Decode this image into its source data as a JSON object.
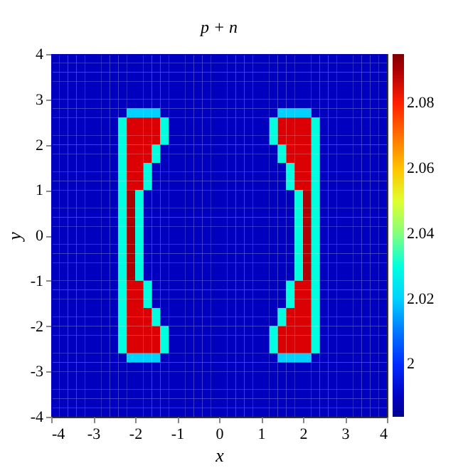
{
  "chart_data": {
    "type": "heatmap",
    "title": "p + n",
    "xlabel": "x",
    "ylabel": "y",
    "xlim": [
      -4,
      4
    ],
    "ylim": [
      -4,
      4
    ],
    "xticks": [
      -4,
      -3,
      -2,
      -1,
      0,
      1,
      2,
      3,
      4
    ],
    "yticks": [
      -4,
      -3,
      -2,
      -1,
      0,
      1,
      2,
      3,
      4
    ],
    "clim": [
      1.984,
      2.095
    ],
    "cticks": [
      2,
      2.02,
      2.04,
      2.06,
      2.08
    ],
    "cells": [
      [
        1.99,
        1.99,
        1.99,
        1.99,
        1.99,
        1.99,
        1.99,
        1.99,
        1.99,
        1.99,
        1.99,
        1.99,
        1.99,
        1.99,
        1.99,
        1.99,
        1.99,
        1.99,
        1.99,
        1.99,
        1.99,
        1.99,
        1.99,
        1.99,
        1.99,
        1.99,
        1.99,
        1.99,
        1.99,
        1.99,
        1.99,
        1.99,
        1.99,
        1.99,
        1.99,
        1.99,
        1.99,
        1.99,
        1.99,
        1.99
      ],
      [
        1.99,
        1.99,
        1.99,
        1.99,
        1.99,
        1.99,
        1.99,
        1.99,
        1.99,
        1.99,
        1.99,
        1.99,
        1.99,
        1.99,
        1.99,
        1.99,
        1.99,
        1.99,
        1.99,
        1.99,
        1.99,
        1.99,
        1.99,
        1.99,
        1.99,
        1.99,
        1.99,
        1.99,
        1.99,
        1.99,
        1.99,
        1.99,
        1.99,
        1.99,
        1.99,
        1.99,
        1.99,
        1.99,
        1.99,
        1.99
      ],
      [
        1.99,
        1.99,
        1.99,
        1.99,
        1.99,
        1.99,
        1.99,
        1.99,
        1.99,
        1.99,
        1.99,
        1.99,
        1.99,
        1.99,
        1.99,
        1.99,
        1.99,
        1.99,
        1.99,
        1.99,
        1.99,
        1.99,
        1.99,
        1.99,
        1.99,
        1.99,
        1.99,
        1.99,
        1.99,
        1.99,
        1.99,
        1.99,
        1.99,
        1.99,
        1.99,
        1.99,
        1.99,
        1.99,
        1.99,
        1.99
      ],
      [
        1.99,
        1.99,
        1.99,
        1.99,
        1.99,
        1.99,
        1.99,
        1.99,
        1.99,
        1.99,
        1.99,
        1.99,
        1.99,
        1.99,
        1.99,
        1.99,
        1.99,
        1.99,
        1.99,
        1.99,
        1.99,
        1.99,
        1.99,
        1.99,
        1.99,
        1.99,
        1.99,
        1.99,
        1.99,
        1.99,
        1.99,
        1.99,
        1.99,
        1.99,
        1.99,
        1.99,
        1.99,
        1.99,
        1.99,
        1.99
      ],
      [
        1.99,
        1.99,
        1.99,
        1.99,
        1.99,
        1.99,
        1.99,
        1.99,
        1.99,
        1.99,
        1.99,
        1.99,
        1.99,
        1.99,
        1.99,
        1.99,
        1.99,
        1.99,
        1.99,
        1.99,
        1.99,
        1.99,
        1.99,
        1.99,
        1.99,
        1.99,
        1.99,
        1.99,
        1.99,
        1.99,
        1.99,
        1.99,
        1.99,
        1.99,
        1.99,
        1.99,
        1.99,
        1.99,
        1.99,
        1.99
      ],
      [
        1.99,
        1.99,
        1.99,
        1.99,
        1.99,
        1.99,
        1.99,
        1.99,
        1.99,
        1.99,
        1.99,
        1.99,
        1.99,
        1.99,
        1.99,
        1.99,
        1.99,
        1.99,
        1.99,
        1.99,
        1.99,
        1.99,
        1.99,
        1.99,
        1.99,
        1.99,
        1.99,
        1.99,
        1.99,
        1.99,
        1.99,
        1.99,
        1.99,
        1.99,
        1.99,
        1.99,
        1.99,
        1.99,
        1.99,
        1.99
      ],
      [
        1.99,
        1.99,
        1.99,
        1.99,
        1.99,
        1.99,
        1.99,
        1.99,
        1.99,
        2.02,
        2.02,
        2.02,
        2.02,
        1.99,
        1.99,
        1.99,
        1.99,
        1.99,
        1.99,
        1.99,
        1.99,
        1.99,
        1.99,
        1.99,
        1.99,
        1.99,
        1.99,
        2.02,
        2.02,
        2.02,
        2.02,
        1.99,
        1.99,
        1.99,
        1.99,
        1.99,
        1.99,
        1.99,
        1.99,
        1.99
      ],
      [
        1.99,
        1.99,
        1.99,
        1.99,
        1.99,
        1.99,
        1.99,
        1.99,
        2.03,
        2.085,
        2.085,
        2.085,
        2.085,
        2.03,
        1.99,
        1.99,
        1.99,
        1.99,
        1.99,
        1.99,
        1.99,
        1.99,
        1.99,
        1.99,
        1.99,
        1.99,
        2.03,
        2.085,
        2.085,
        2.085,
        2.085,
        2.03,
        1.99,
        1.99,
        1.99,
        1.99,
        1.99,
        1.99,
        1.99,
        1.99
      ],
      [
        1.99,
        1.99,
        1.99,
        1.99,
        1.99,
        1.99,
        1.99,
        1.99,
        2.03,
        2.085,
        2.085,
        2.085,
        2.085,
        2.03,
        1.99,
        1.99,
        1.99,
        1.99,
        1.99,
        1.99,
        1.99,
        1.99,
        1.99,
        1.99,
        1.99,
        1.99,
        2.03,
        2.085,
        2.085,
        2.085,
        2.085,
        2.03,
        1.99,
        1.99,
        1.99,
        1.99,
        1.99,
        1.99,
        1.99,
        1.99
      ],
      [
        1.99,
        1.99,
        1.99,
        1.99,
        1.99,
        1.99,
        1.99,
        1.99,
        2.03,
        2.085,
        2.085,
        2.085,
        2.085,
        2.03,
        1.99,
        1.99,
        1.99,
        1.99,
        1.99,
        1.99,
        1.99,
        1.99,
        1.99,
        1.99,
        1.99,
        1.99,
        2.03,
        2.085,
        2.085,
        2.085,
        2.085,
        2.03,
        1.99,
        1.99,
        1.99,
        1.99,
        1.99,
        1.99,
        1.99,
        1.99
      ],
      [
        1.99,
        1.99,
        1.99,
        1.99,
        1.99,
        1.99,
        1.99,
        1.99,
        2.03,
        2.085,
        2.085,
        2.085,
        2.03,
        1.99,
        1.99,
        1.99,
        1.99,
        1.99,
        1.99,
        1.99,
        1.99,
        1.99,
        1.99,
        1.99,
        1.99,
        1.99,
        1.99,
        2.03,
        2.085,
        2.085,
        2.085,
        2.03,
        1.99,
        1.99,
        1.99,
        1.99,
        1.99,
        1.99,
        1.99,
        1.99
      ],
      [
        1.99,
        1.99,
        1.99,
        1.99,
        1.99,
        1.99,
        1.99,
        1.99,
        2.03,
        2.085,
        2.085,
        2.085,
        2.03,
        1.99,
        1.99,
        1.99,
        1.99,
        1.99,
        1.99,
        1.99,
        1.99,
        1.99,
        1.99,
        1.99,
        1.99,
        1.99,
        1.99,
        2.03,
        2.085,
        2.085,
        2.085,
        2.03,
        1.99,
        1.99,
        1.99,
        1.99,
        1.99,
        1.99,
        1.99,
        1.99
      ],
      [
        1.99,
        1.99,
        1.99,
        1.99,
        1.99,
        1.99,
        1.99,
        1.99,
        2.03,
        2.085,
        2.085,
        2.03,
        1.99,
        1.99,
        1.99,
        1.99,
        1.99,
        1.99,
        1.99,
        1.99,
        1.99,
        1.99,
        1.99,
        1.99,
        1.99,
        1.99,
        1.99,
        1.99,
        2.03,
        2.085,
        2.085,
        2.03,
        1.99,
        1.99,
        1.99,
        1.99,
        1.99,
        1.99,
        1.99,
        1.99
      ],
      [
        1.99,
        1.99,
        1.99,
        1.99,
        1.99,
        1.99,
        1.99,
        1.99,
        2.03,
        2.085,
        2.085,
        2.03,
        1.99,
        1.99,
        1.99,
        1.99,
        1.99,
        1.99,
        1.99,
        1.99,
        1.99,
        1.99,
        1.99,
        1.99,
        1.99,
        1.99,
        1.99,
        1.99,
        2.03,
        2.085,
        2.085,
        2.03,
        1.99,
        1.99,
        1.99,
        1.99,
        1.99,
        1.99,
        1.99,
        1.99
      ],
      [
        1.99,
        1.99,
        1.99,
        1.99,
        1.99,
        1.99,
        1.99,
        1.99,
        2.03,
        2.085,
        2.085,
        2.03,
        1.99,
        1.99,
        1.99,
        1.99,
        1.99,
        1.99,
        1.99,
        1.99,
        1.99,
        1.99,
        1.99,
        1.99,
        1.99,
        1.99,
        1.99,
        1.99,
        2.03,
        2.085,
        2.085,
        2.03,
        1.99,
        1.99,
        1.99,
        1.99,
        1.99,
        1.99,
        1.99,
        1.99
      ],
      [
        1.99,
        1.99,
        1.99,
        1.99,
        1.99,
        1.99,
        1.99,
        1.99,
        2.03,
        2.09,
        2.03,
        1.99,
        1.99,
        1.99,
        1.99,
        1.99,
        1.99,
        1.99,
        1.99,
        1.99,
        1.99,
        1.99,
        1.99,
        1.99,
        1.99,
        1.99,
        1.99,
        1.99,
        1.99,
        2.03,
        2.09,
        2.03,
        1.99,
        1.99,
        1.99,
        1.99,
        1.99,
        1.99,
        1.99,
        1.99
      ],
      [
        1.99,
        1.99,
        1.99,
        1.99,
        1.99,
        1.99,
        1.99,
        1.99,
        2.03,
        2.09,
        2.03,
        1.99,
        1.99,
        1.99,
        1.99,
        1.99,
        1.99,
        1.99,
        1.99,
        1.99,
        1.99,
        1.99,
        1.99,
        1.99,
        1.99,
        1.99,
        1.99,
        1.99,
        1.99,
        2.03,
        2.09,
        2.03,
        1.99,
        1.99,
        1.99,
        1.99,
        1.99,
        1.99,
        1.99,
        1.99
      ],
      [
        1.99,
        1.99,
        1.99,
        1.99,
        1.99,
        1.99,
        1.99,
        1.99,
        2.03,
        2.09,
        2.03,
        1.99,
        1.99,
        1.99,
        1.99,
        1.99,
        1.99,
        1.99,
        1.99,
        1.99,
        1.99,
        1.99,
        1.99,
        1.99,
        1.99,
        1.99,
        1.99,
        1.99,
        1.99,
        2.03,
        2.09,
        2.03,
        1.99,
        1.99,
        1.99,
        1.99,
        1.99,
        1.99,
        1.99,
        1.99
      ],
      [
        1.99,
        1.99,
        1.99,
        1.99,
        1.99,
        1.99,
        1.99,
        1.99,
        2.03,
        2.09,
        2.03,
        1.99,
        1.99,
        1.99,
        1.99,
        1.99,
        1.99,
        1.99,
        1.99,
        1.99,
        1.99,
        1.99,
        1.99,
        1.99,
        1.99,
        1.99,
        1.99,
        1.99,
        1.99,
        2.03,
        2.09,
        2.03,
        1.99,
        1.99,
        1.99,
        1.99,
        1.99,
        1.99,
        1.99,
        1.99
      ],
      [
        1.99,
        1.99,
        1.99,
        1.99,
        1.99,
        1.99,
        1.99,
        1.99,
        2.03,
        2.09,
        2.03,
        1.99,
        1.99,
        1.99,
        1.99,
        1.99,
        1.99,
        1.99,
        1.99,
        1.99,
        1.99,
        1.99,
        1.99,
        1.99,
        1.99,
        1.99,
        1.99,
        1.99,
        1.99,
        2.03,
        2.09,
        2.03,
        1.99,
        1.99,
        1.99,
        1.99,
        1.99,
        1.99,
        1.99,
        1.99
      ],
      [
        1.99,
        1.99,
        1.99,
        1.99,
        1.99,
        1.99,
        1.99,
        1.99,
        2.03,
        2.09,
        2.03,
        1.99,
        1.99,
        1.99,
        1.99,
        1.99,
        1.99,
        1.99,
        1.99,
        1.99,
        1.99,
        1.99,
        1.99,
        1.99,
        1.99,
        1.99,
        1.99,
        1.99,
        1.99,
        2.03,
        2.09,
        2.03,
        1.99,
        1.99,
        1.99,
        1.99,
        1.99,
        1.99,
        1.99,
        1.99
      ],
      [
        1.99,
        1.99,
        1.99,
        1.99,
        1.99,
        1.99,
        1.99,
        1.99,
        2.03,
        2.09,
        2.03,
        1.99,
        1.99,
        1.99,
        1.99,
        1.99,
        1.99,
        1.99,
        1.99,
        1.99,
        1.99,
        1.99,
        1.99,
        1.99,
        1.99,
        1.99,
        1.99,
        1.99,
        1.99,
        2.03,
        2.09,
        2.03,
        1.99,
        1.99,
        1.99,
        1.99,
        1.99,
        1.99,
        1.99,
        1.99
      ],
      [
        1.99,
        1.99,
        1.99,
        1.99,
        1.99,
        1.99,
        1.99,
        1.99,
        2.03,
        2.09,
        2.03,
        1.99,
        1.99,
        1.99,
        1.99,
        1.99,
        1.99,
        1.99,
        1.99,
        1.99,
        1.99,
        1.99,
        1.99,
        1.99,
        1.99,
        1.99,
        1.99,
        1.99,
        1.99,
        2.03,
        2.09,
        2.03,
        1.99,
        1.99,
        1.99,
        1.99,
        1.99,
        1.99,
        1.99,
        1.99
      ],
      [
        1.99,
        1.99,
        1.99,
        1.99,
        1.99,
        1.99,
        1.99,
        1.99,
        2.03,
        2.09,
        2.03,
        1.99,
        1.99,
        1.99,
        1.99,
        1.99,
        1.99,
        1.99,
        1.99,
        1.99,
        1.99,
        1.99,
        1.99,
        1.99,
        1.99,
        1.99,
        1.99,
        1.99,
        1.99,
        2.03,
        2.09,
        2.03,
        1.99,
        1.99,
        1.99,
        1.99,
        1.99,
        1.99,
        1.99,
        1.99
      ],
      [
        1.99,
        1.99,
        1.99,
        1.99,
        1.99,
        1.99,
        1.99,
        1.99,
        2.03,
        2.09,
        2.03,
        1.99,
        1.99,
        1.99,
        1.99,
        1.99,
        1.99,
        1.99,
        1.99,
        1.99,
        1.99,
        1.99,
        1.99,
        1.99,
        1.99,
        1.99,
        1.99,
        1.99,
        1.99,
        2.03,
        2.09,
        2.03,
        1.99,
        1.99,
        1.99,
        1.99,
        1.99,
        1.99,
        1.99,
        1.99
      ],
      [
        1.99,
        1.99,
        1.99,
        1.99,
        1.99,
        1.99,
        1.99,
        1.99,
        2.03,
        2.085,
        2.085,
        2.03,
        1.99,
        1.99,
        1.99,
        1.99,
        1.99,
        1.99,
        1.99,
        1.99,
        1.99,
        1.99,
        1.99,
        1.99,
        1.99,
        1.99,
        1.99,
        1.99,
        2.03,
        2.085,
        2.085,
        2.03,
        1.99,
        1.99,
        1.99,
        1.99,
        1.99,
        1.99,
        1.99,
        1.99
      ],
      [
        1.99,
        1.99,
        1.99,
        1.99,
        1.99,
        1.99,
        1.99,
        1.99,
        2.03,
        2.085,
        2.085,
        2.03,
        1.99,
        1.99,
        1.99,
        1.99,
        1.99,
        1.99,
        1.99,
        1.99,
        1.99,
        1.99,
        1.99,
        1.99,
        1.99,
        1.99,
        1.99,
        1.99,
        2.03,
        2.085,
        2.085,
        2.03,
        1.99,
        1.99,
        1.99,
        1.99,
        1.99,
        1.99,
        1.99,
        1.99
      ],
      [
        1.99,
        1.99,
        1.99,
        1.99,
        1.99,
        1.99,
        1.99,
        1.99,
        2.03,
        2.085,
        2.085,
        2.03,
        1.99,
        1.99,
        1.99,
        1.99,
        1.99,
        1.99,
        1.99,
        1.99,
        1.99,
        1.99,
        1.99,
        1.99,
        1.99,
        1.99,
        1.99,
        1.99,
        2.03,
        2.085,
        2.085,
        2.03,
        1.99,
        1.99,
        1.99,
        1.99,
        1.99,
        1.99,
        1.99,
        1.99
      ],
      [
        1.99,
        1.99,
        1.99,
        1.99,
        1.99,
        1.99,
        1.99,
        1.99,
        2.03,
        2.085,
        2.085,
        2.085,
        2.03,
        1.99,
        1.99,
        1.99,
        1.99,
        1.99,
        1.99,
        1.99,
        1.99,
        1.99,
        1.99,
        1.99,
        1.99,
        1.99,
        1.99,
        2.03,
        2.085,
        2.085,
        2.085,
        2.03,
        1.99,
        1.99,
        1.99,
        1.99,
        1.99,
        1.99,
        1.99,
        1.99
      ],
      [
        1.99,
        1.99,
        1.99,
        1.99,
        1.99,
        1.99,
        1.99,
        1.99,
        2.03,
        2.085,
        2.085,
        2.085,
        2.03,
        1.99,
        1.99,
        1.99,
        1.99,
        1.99,
        1.99,
        1.99,
        1.99,
        1.99,
        1.99,
        1.99,
        1.99,
        1.99,
        1.99,
        2.03,
        2.085,
        2.085,
        2.085,
        2.03,
        1.99,
        1.99,
        1.99,
        1.99,
        1.99,
        1.99,
        1.99,
        1.99
      ],
      [
        1.99,
        1.99,
        1.99,
        1.99,
        1.99,
        1.99,
        1.99,
        1.99,
        2.03,
        2.085,
        2.085,
        2.085,
        2.085,
        2.03,
        1.99,
        1.99,
        1.99,
        1.99,
        1.99,
        1.99,
        1.99,
        1.99,
        1.99,
        1.99,
        1.99,
        1.99,
        2.03,
        2.085,
        2.085,
        2.085,
        2.085,
        2.03,
        1.99,
        1.99,
        1.99,
        1.99,
        1.99,
        1.99,
        1.99,
        1.99
      ],
      [
        1.99,
        1.99,
        1.99,
        1.99,
        1.99,
        1.99,
        1.99,
        1.99,
        2.03,
        2.085,
        2.085,
        2.085,
        2.085,
        2.03,
        1.99,
        1.99,
        1.99,
        1.99,
        1.99,
        1.99,
        1.99,
        1.99,
        1.99,
        1.99,
        1.99,
        1.99,
        2.03,
        2.085,
        2.085,
        2.085,
        2.085,
        2.03,
        1.99,
        1.99,
        1.99,
        1.99,
        1.99,
        1.99,
        1.99,
        1.99
      ],
      [
        1.99,
        1.99,
        1.99,
        1.99,
        1.99,
        1.99,
        1.99,
        1.99,
        2.03,
        2.085,
        2.085,
        2.085,
        2.085,
        2.03,
        1.99,
        1.99,
        1.99,
        1.99,
        1.99,
        1.99,
        1.99,
        1.99,
        1.99,
        1.99,
        1.99,
        1.99,
        2.03,
        2.085,
        2.085,
        2.085,
        2.085,
        2.03,
        1.99,
        1.99,
        1.99,
        1.99,
        1.99,
        1.99,
        1.99,
        1.99
      ],
      [
        1.99,
        1.99,
        1.99,
        1.99,
        1.99,
        1.99,
        1.99,
        1.99,
        1.99,
        2.02,
        2.02,
        2.02,
        2.02,
        1.99,
        1.99,
        1.99,
        1.99,
        1.99,
        1.99,
        1.99,
        1.99,
        1.99,
        1.99,
        1.99,
        1.99,
        1.99,
        1.99,
        2.02,
        2.02,
        2.02,
        2.02,
        1.99,
        1.99,
        1.99,
        1.99,
        1.99,
        1.99,
        1.99,
        1.99,
        1.99
      ],
      [
        1.99,
        1.99,
        1.99,
        1.99,
        1.99,
        1.99,
        1.99,
        1.99,
        1.99,
        1.99,
        1.99,
        1.99,
        1.99,
        1.99,
        1.99,
        1.99,
        1.99,
        1.99,
        1.99,
        1.99,
        1.99,
        1.99,
        1.99,
        1.99,
        1.99,
        1.99,
        1.99,
        1.99,
        1.99,
        1.99,
        1.99,
        1.99,
        1.99,
        1.99,
        1.99,
        1.99,
        1.99,
        1.99,
        1.99,
        1.99
      ],
      [
        1.99,
        1.99,
        1.99,
        1.99,
        1.99,
        1.99,
        1.99,
        1.99,
        1.99,
        1.99,
        1.99,
        1.99,
        1.99,
        1.99,
        1.99,
        1.99,
        1.99,
        1.99,
        1.99,
        1.99,
        1.99,
        1.99,
        1.99,
        1.99,
        1.99,
        1.99,
        1.99,
        1.99,
        1.99,
        1.99,
        1.99,
        1.99,
        1.99,
        1.99,
        1.99,
        1.99,
        1.99,
        1.99,
        1.99,
        1.99
      ],
      [
        1.99,
        1.99,
        1.99,
        1.99,
        1.99,
        1.99,
        1.99,
        1.99,
        1.99,
        1.99,
        1.99,
        1.99,
        1.99,
        1.99,
        1.99,
        1.99,
        1.99,
        1.99,
        1.99,
        1.99,
        1.99,
        1.99,
        1.99,
        1.99,
        1.99,
        1.99,
        1.99,
        1.99,
        1.99,
        1.99,
        1.99,
        1.99,
        1.99,
        1.99,
        1.99,
        1.99,
        1.99,
        1.99,
        1.99,
        1.99
      ],
      [
        1.99,
        1.99,
        1.99,
        1.99,
        1.99,
        1.99,
        1.99,
        1.99,
        1.99,
        1.99,
        1.99,
        1.99,
        1.99,
        1.99,
        1.99,
        1.99,
        1.99,
        1.99,
        1.99,
        1.99,
        1.99,
        1.99,
        1.99,
        1.99,
        1.99,
        1.99,
        1.99,
        1.99,
        1.99,
        1.99,
        1.99,
        1.99,
        1.99,
        1.99,
        1.99,
        1.99,
        1.99,
        1.99,
        1.99,
        1.99
      ],
      [
        1.99,
        1.99,
        1.99,
        1.99,
        1.99,
        1.99,
        1.99,
        1.99,
        1.99,
        1.99,
        1.99,
        1.99,
        1.99,
        1.99,
        1.99,
        1.99,
        1.99,
        1.99,
        1.99,
        1.99,
        1.99,
        1.99,
        1.99,
        1.99,
        1.99,
        1.99,
        1.99,
        1.99,
        1.99,
        1.99,
        1.99,
        1.99,
        1.99,
        1.99,
        1.99,
        1.99,
        1.99,
        1.99,
        1.99,
        1.99
      ],
      [
        1.99,
        1.99,
        1.99,
        1.99,
        1.99,
        1.99,
        1.99,
        1.99,
        1.99,
        1.99,
        1.99,
        1.99,
        1.99,
        1.99,
        1.99,
        1.99,
        1.99,
        1.99,
        1.99,
        1.99,
        1.99,
        1.99,
        1.99,
        1.99,
        1.99,
        1.99,
        1.99,
        1.99,
        1.99,
        1.99,
        1.99,
        1.99,
        1.99,
        1.99,
        1.99,
        1.99,
        1.99,
        1.99,
        1.99,
        1.99
      ]
    ]
  }
}
